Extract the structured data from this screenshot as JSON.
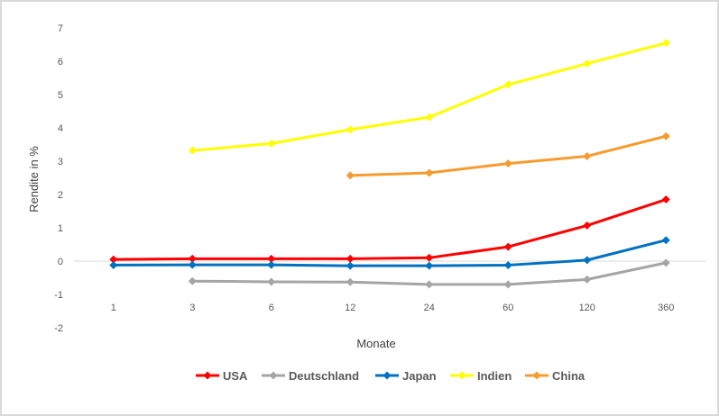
{
  "chart_data": {
    "type": "line",
    "title": "",
    "xlabel": "Monate",
    "ylabel": "Rendite in %",
    "categories": [
      "1",
      "3",
      "6",
      "12",
      "24",
      "60",
      "120",
      "360"
    ],
    "ylim": [
      -2,
      7
    ],
    "yticks": [
      "-2",
      "-1",
      "0",
      "1",
      "2",
      "3",
      "4",
      "5",
      "6",
      "7"
    ],
    "grid": false,
    "legend": "bottom",
    "series": [
      {
        "name": "USA",
        "color": "#ff0000",
        "values": [
          0.05,
          0.07,
          0.07,
          0.07,
          0.1,
          0.43,
          1.07,
          1.85
        ]
      },
      {
        "name": "Deutschland",
        "color": "#a5a5a5",
        "values": [
          null,
          -0.6,
          -0.62,
          -0.63,
          -0.7,
          -0.7,
          -0.55,
          -0.05
        ]
      },
      {
        "name": "Japan",
        "color": "#0070c0",
        "values": [
          -0.12,
          -0.11,
          -0.11,
          -0.14,
          -0.14,
          -0.12,
          0.03,
          0.63
        ]
      },
      {
        "name": "Indien",
        "color": "#ffff00",
        "values": [
          null,
          3.32,
          3.53,
          3.95,
          4.32,
          5.3,
          5.93,
          6.55
        ]
      },
      {
        "name": "China",
        "color": "#f79b2e",
        "values": [
          null,
          null,
          null,
          2.57,
          2.65,
          2.93,
          3.15,
          3.75
        ]
      }
    ]
  }
}
